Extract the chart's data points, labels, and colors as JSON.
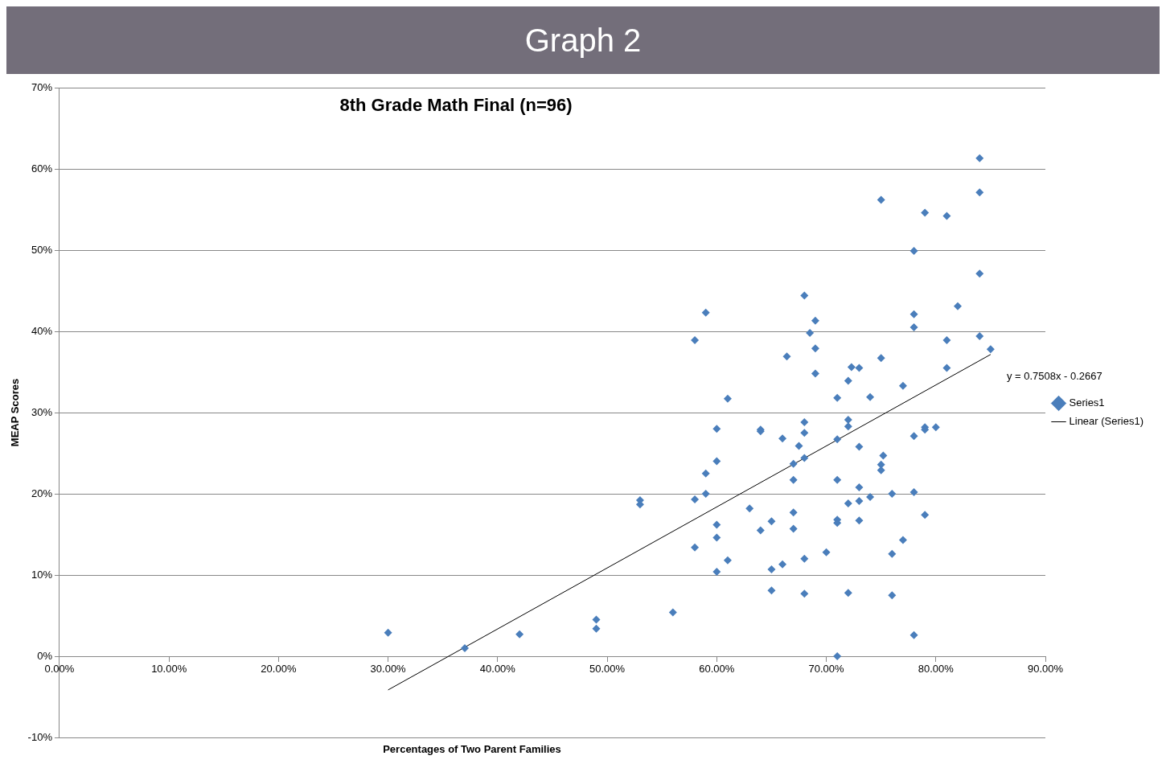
{
  "chart_data": {
    "type": "scatter",
    "title": "Graph 2",
    "subtitle": "8th Grade Math Final (n=96)",
    "xlabel": "Percentages of Two Parent Families",
    "ylabel": "MEAP Scores",
    "annotations": [
      {
        "text": "y = 0.7508x - 0.2667",
        "x": 85,
        "y": 37.15
      }
    ],
    "series": [
      {
        "name": "Series1",
        "color": "#4a7ebb",
        "marker": "diamond",
        "x": [
          30,
          37,
          42,
          49,
          49,
          53,
          53,
          56,
          58,
          58,
          58,
          59,
          59,
          59,
          60,
          60,
          60,
          60,
          60,
          61,
          61,
          63,
          64,
          64,
          64,
          65,
          65,
          65,
          66,
          66,
          66.4,
          67,
          67,
          67,
          67,
          67.5,
          68,
          68,
          68,
          68,
          68,
          68,
          68.5,
          69,
          69,
          69,
          70,
          71,
          71,
          71,
          71,
          71,
          71,
          72,
          72,
          72,
          72,
          72,
          72.3,
          73,
          73,
          73,
          73,
          73,
          74,
          74,
          75,
          75,
          75.2,
          75,
          75,
          76,
          76,
          76,
          77,
          77,
          78,
          78,
          78,
          78,
          78,
          78,
          79,
          79,
          79,
          79,
          80,
          81,
          81,
          81,
          82,
          84,
          84,
          84,
          84,
          85
        ],
        "values": [
          2.9,
          1.0,
          2.7,
          4.5,
          3.4,
          19.2,
          18.7,
          5.4,
          38.9,
          19.3,
          13.4,
          42.3,
          22.5,
          20.0,
          28.0,
          24.0,
          16.2,
          14.6,
          10.4,
          31.7,
          11.8,
          18.2,
          27.9,
          27.7,
          15.5,
          16.6,
          10.7,
          8.1,
          26.8,
          11.3,
          36.9,
          23.7,
          21.7,
          17.7,
          15.7,
          25.9,
          44.4,
          28.8,
          27.5,
          24.4,
          12.0,
          7.7,
          39.8,
          41.3,
          37.9,
          34.8,
          12.8,
          31.8,
          26.7,
          21.7,
          16.8,
          16.4,
          0,
          33.9,
          29.1,
          28.3,
          18.8,
          7.8,
          35.6,
          35.5,
          25.8,
          20.8,
          19.1,
          16.7,
          31.9,
          19.6,
          56.2,
          36.7,
          24.7,
          23.6,
          22.9,
          20.0,
          12.6,
          7.5,
          33.3,
          14.3,
          49.9,
          42.1,
          40.5,
          27.1,
          20.2,
          2.6,
          54.6,
          28.2,
          27.9,
          17.4,
          28.2,
          54.2,
          38.9,
          35.5,
          43.1,
          61.3,
          57.1,
          47.1,
          39.4,
          37.8
        ]
      },
      {
        "name": "Linear (Series1)",
        "type": "line",
        "color": "#000000",
        "marker": "none",
        "x": [
          30,
          85
        ],
        "values": [
          -4.15,
          37.15
        ]
      }
    ],
    "xlim": [
      0,
      90
    ],
    "xticks": [
      {
        "value": 0,
        "label": "0.00%"
      },
      {
        "value": 10,
        "label": "10.00%"
      },
      {
        "value": 20,
        "label": "20.00%"
      },
      {
        "value": 30,
        "label": "30.00%"
      },
      {
        "value": 40,
        "label": "40.00%"
      },
      {
        "value": 50,
        "label": "50.00%"
      },
      {
        "value": 60,
        "label": "60.00%"
      },
      {
        "value": 70,
        "label": "70.00%"
      },
      {
        "value": 80,
        "label": "80.00%"
      },
      {
        "value": 90,
        "label": "90.00%"
      }
    ],
    "ylim": [
      -10,
      70
    ],
    "yticks": [
      {
        "value": -10,
        "label": "-10%"
      },
      {
        "value": 0,
        "label": "0%"
      },
      {
        "value": 10,
        "label": "10%"
      },
      {
        "value": 20,
        "label": "20%"
      },
      {
        "value": 30,
        "label": "30%"
      },
      {
        "value": 40,
        "label": "40%"
      },
      {
        "value": 50,
        "label": "50%"
      },
      {
        "value": 60,
        "label": "60%"
      },
      {
        "value": 70,
        "label": "70%"
      }
    ],
    "grid": "y",
    "legend": "right"
  }
}
